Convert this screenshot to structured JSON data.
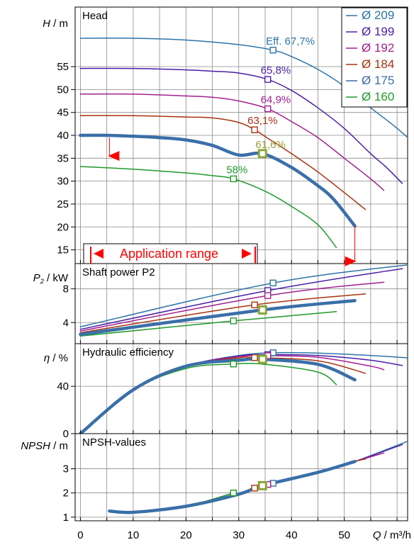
{
  "chart_data": [
    {
      "type": "line",
      "title": "Head",
      "ylabel": {
        "symbol": "H",
        "unit": " / m"
      },
      "ylim": [
        12,
        68
      ],
      "yticks": [
        15,
        20,
        25,
        30,
        35,
        40,
        45,
        50,
        55
      ],
      "xlim": [
        -1,
        62
      ],
      "x_ticks": [
        0,
        10,
        20,
        30,
        40,
        50
      ],
      "grid": true,
      "legend": {
        "placement": "top-right"
      },
      "series": [
        {
          "name": "Ø 209",
          "color": "#2c74a8",
          "x": [
            0,
            10,
            20,
            30,
            36.5,
            40,
            45,
            50,
            55,
            59.5,
            64
          ],
          "y": [
            61.2,
            61.2,
            60.8,
            59.8,
            58.6,
            57.2,
            54.4,
            50.7,
            46,
            42,
            37.5
          ]
        },
        {
          "name": "Ø 199",
          "color": "#4a1fa8",
          "x": [
            0,
            10,
            20,
            25,
            30,
            35.5,
            40,
            45,
            50,
            55,
            58,
            61
          ],
          "y": [
            54.6,
            54.6,
            54.3,
            54,
            53.6,
            52.2,
            49.8,
            46,
            41.5,
            36,
            33,
            29.5
          ]
        },
        {
          "name": "Ø 192",
          "color": "#a3208f",
          "x": [
            0,
            10,
            20,
            25,
            30,
            35.5,
            40,
            45,
            50,
            55,
            57.5
          ],
          "y": [
            49,
            49,
            48.6,
            48.3,
            47.5,
            45.8,
            43,
            39.5,
            35,
            30.5,
            28
          ]
        },
        {
          "name": "Ø 184",
          "color": "#a8320f",
          "x": [
            0,
            10,
            20,
            25,
            30,
            33,
            36,
            40,
            45,
            50,
            54
          ],
          "y": [
            44.3,
            44.3,
            44,
            43.8,
            42.8,
            41.2,
            39,
            36,
            32,
            27.5,
            23.8
          ]
        },
        {
          "name": "Ø 175",
          "color": "#3a6fa8",
          "x": [
            0,
            5,
            10,
            15,
            20,
            25,
            30,
            34.5,
            40,
            45,
            48,
            52
          ],
          "y": [
            40,
            40,
            39.8,
            39.5,
            39,
            37.8,
            35.7,
            36,
            33,
            29,
            26,
            20.2
          ]
        },
        {
          "name": "Ø 160",
          "color": "#1f9a2a",
          "x": [
            0,
            10,
            20,
            25,
            29,
            35,
            40,
            45,
            48.5
          ],
          "y": [
            33.2,
            32.6,
            31.8,
            31.2,
            30.5,
            27.8,
            24.5,
            20.5,
            15.5
          ]
        }
      ],
      "bold_series": "Ø 175",
      "efficiency_labels": [
        {
          "text": "Eff. 67,7%",
          "x": 36.5,
          "y": 58.6,
          "color": "#2c74a8"
        },
        {
          "text": "65,8%",
          "x": 35.5,
          "y": 52.2,
          "color": "#4a1fa8"
        },
        {
          "text": "64,9%",
          "x": 35.5,
          "y": 45.8,
          "color": "#a3208f"
        },
        {
          "text": "63,1%",
          "x": 33,
          "y": 41.2,
          "color": "#a8320f"
        },
        {
          "text": "61,6%",
          "x": 34.5,
          "y": 36,
          "color": "#9aa03a"
        },
        {
          "text": "58%",
          "x": 29,
          "y": 30.5,
          "color": "#1f9a2a"
        }
      ],
      "application_range": {
        "label": "Application range",
        "q_min": 5.5,
        "q_max": 52,
        "color": "#ff0000"
      }
    },
    {
      "type": "line",
      "title": "Shaft power P2",
      "ylabel": {
        "symbol": "P",
        "subscript": "2",
        "unit": " / kW"
      },
      "ylim": [
        1.5,
        11
      ],
      "yticks": [
        4,
        8
      ],
      "grid": true,
      "series": [
        {
          "name": "Ø 209",
          "color": "#2c74a8",
          "x": [
            0,
            36.5,
            64
          ],
          "y": [
            3.5,
            8.7,
            11.0
          ]
        },
        {
          "name": "Ø 199",
          "color": "#4a1fa8",
          "x": [
            0,
            35.5,
            61
          ],
          "y": [
            3.2,
            7.8,
            10.4
          ]
        },
        {
          "name": "Ø 192",
          "color": "#a3208f",
          "x": [
            0,
            35.5,
            57.5
          ],
          "y": [
            3,
            7.2,
            8.8
          ]
        },
        {
          "name": "Ø 184",
          "color": "#a8320f",
          "x": [
            0,
            33,
            54
          ],
          "y": [
            2.8,
            6.1,
            7.4
          ]
        },
        {
          "name": "Ø 175",
          "color": "#3a6fa8",
          "x": [
            0,
            34.5,
            52
          ],
          "y": [
            2.6,
            5.5,
            6.6
          ]
        },
        {
          "name": "Ø 160",
          "color": "#1f9a2a",
          "x": [
            0,
            29,
            48.5
          ],
          "y": [
            2.4,
            4.2,
            5.3
          ]
        }
      ]
    },
    {
      "type": "line",
      "title": "Hydraulic efficiency",
      "ylabel": {
        "symbol": "η",
        "unit": " / %"
      },
      "ylim": [
        0,
        76
      ],
      "yticks": [
        0,
        40
      ],
      "grid": true,
      "series": [
        {
          "name": "Ø 209",
          "color": "#2c74a8",
          "x": [
            0,
            10,
            20,
            30,
            36.5,
            45,
            55,
            64
          ],
          "y": [
            0,
            37,
            57,
            66,
            68.3,
            68,
            66,
            63.5
          ]
        },
        {
          "name": "Ø 199",
          "color": "#4a1fa8",
          "x": [
            0,
            10,
            20,
            30,
            35.5,
            45,
            55,
            61
          ],
          "y": [
            0,
            37,
            57,
            65.5,
            66.7,
            66,
            62,
            57.5
          ]
        },
        {
          "name": "Ø 192",
          "color": "#a3208f",
          "x": [
            0,
            10,
            20,
            30,
            35.5,
            45,
            55,
            57.5
          ],
          "y": [
            0,
            37,
            57,
            65,
            65.8,
            64.5,
            57,
            54
          ]
        },
        {
          "name": "Ø 184",
          "color": "#a8320f",
          "x": [
            0,
            10,
            20,
            30,
            33,
            45,
            54
          ],
          "y": [
            0,
            37,
            57,
            64,
            64.2,
            61.5,
            51
          ]
        },
        {
          "name": "Ø 175",
          "color": "#3a6fa8",
          "x": [
            0,
            10,
            20,
            30,
            34.5,
            45,
            52
          ],
          "y": [
            0,
            37,
            57,
            62,
            62.8,
            58.5,
            45.5
          ]
        },
        {
          "name": "Ø 160",
          "color": "#1f9a2a",
          "x": [
            0,
            10,
            20,
            29,
            35,
            45,
            48.5
          ],
          "y": [
            0,
            37,
            55,
            58.8,
            58.5,
            52,
            41.5
          ]
        }
      ]
    },
    {
      "type": "line",
      "title": "NPSH-values",
      "ylabel": {
        "symbol": "NPSH",
        "unit": " / m"
      },
      "ylim": [
        0.85,
        4.45
      ],
      "yticks": [
        1,
        2,
        3
      ],
      "xlabel": {
        "symbol": "Q",
        "unit": " / m³/h"
      },
      "grid": true,
      "series": [
        {
          "name": "Ø 209",
          "color": "#2c74a8",
          "x": [
            5.5,
            10,
            20,
            30,
            36.5,
            45,
            52,
            64
          ],
          "y": [
            1.25,
            1.2,
            1.45,
            1.95,
            2.4,
            2.85,
            3.3,
            4.3
          ]
        },
        {
          "name": "Ø 199",
          "color": "#4a1fa8",
          "x": [
            5.5,
            10,
            20,
            30,
            35.5,
            45,
            52,
            61
          ],
          "y": [
            1.25,
            1.2,
            1.45,
            1.95,
            2.35,
            2.85,
            3.3,
            4.0
          ]
        },
        {
          "name": "Ø 192",
          "color": "#a3208f",
          "x": [
            5.5,
            10,
            20,
            30,
            35.5,
            45,
            52,
            57.5
          ],
          "y": [
            1.25,
            1.2,
            1.45,
            1.95,
            2.35,
            2.85,
            3.3,
            3.65
          ]
        },
        {
          "name": "Ø 184",
          "color": "#a8320f",
          "x": [
            5.5,
            10,
            20,
            30,
            33,
            45,
            52,
            54
          ],
          "y": [
            1.25,
            1.2,
            1.45,
            1.95,
            2.2,
            2.85,
            3.3,
            3.4
          ]
        },
        {
          "name": "Ø 175",
          "color": "#3a6fa8",
          "x": [
            5.5,
            10,
            20,
            30,
            34.5,
            45,
            52
          ],
          "y": [
            1.25,
            1.2,
            1.45,
            1.95,
            2.3,
            2.85,
            3.3
          ]
        },
        {
          "name": "Ø 160",
          "color": "#1f9a2a",
          "x": [
            5.5,
            10,
            20,
            29
          ],
          "y": [
            1.25,
            1.2,
            1.45,
            2.0
          ]
        }
      ]
    }
  ]
}
